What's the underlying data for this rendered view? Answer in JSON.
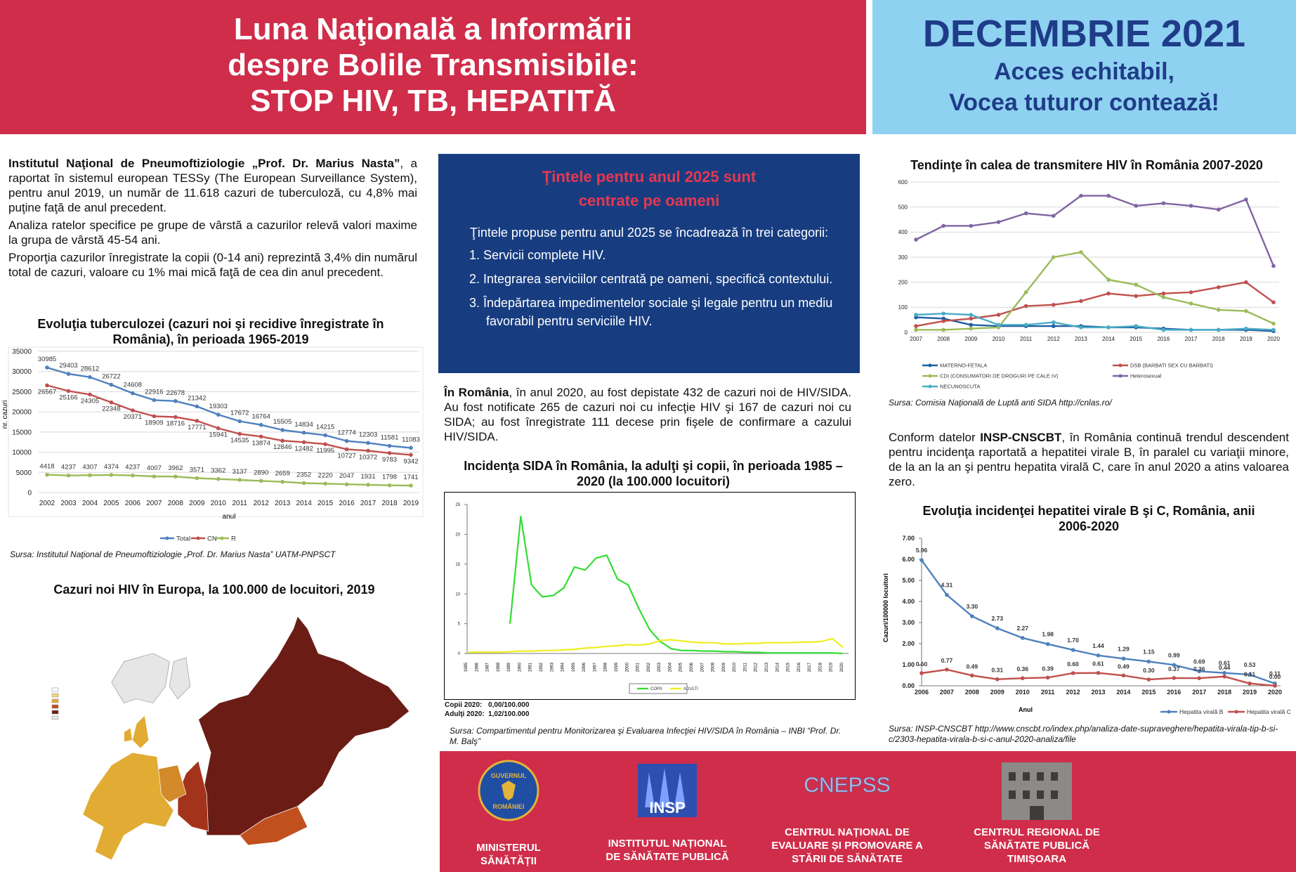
{
  "header": {
    "title_lines": [
      "Luna Naţională a Informării",
      "despre Bolile Transmisibile:",
      "STOP HIV, TB, HEPATITĂ"
    ],
    "month": "DECEMBRIE 2021",
    "slogan": [
      "Acces echitabil,",
      "Vocea tuturor contează!"
    ]
  },
  "left": {
    "intro_bold": "Institutul Naţional de Pneumoftiziologie „Prof. Dr. Marius Nasta”",
    "intro_text": ", a raportat în sistemul european TESSy (The European Surveillance System), pentru anul 2019, un număr de 11.618 cazuri de tuberculoză, cu 4,8% mai puţine faţă de anul precedent.",
    "p2": "Analiza ratelor specifice pe grupe de vârstă a cazurilor relevă valori maxime la grupa de vârstă 45-54 ani.",
    "p3": "Proporţia cazurilor înregistrate la copii (0-14 ani) reprezintă 3,4% din numărul total de cazuri, valoare cu 1% mai mică faţă de cea din anul precedent."
  },
  "map": {
    "title": "Cazuri noi HIV în Europa, la 100.000 de locuitori, 2019"
  },
  "targets": {
    "title_lines": [
      "Ţintele pentru anul 2025 sunt",
      "centrate pe oameni"
    ],
    "intro": "Ţintele propuse pentru anul 2025 se încadrează în trei categorii:",
    "items": [
      "1. Servicii complete HIV.",
      "2. Integrarea serviciilor centrată pe oameni, specifică contextului.",
      "3. Îndepărtarea impedimentelor sociale şi legale pentru un mediu favorabil pentru serviciile HIV."
    ]
  },
  "romania": {
    "bold": "În România",
    "text": ", în anul 2020, au fost depistate 432 de cazuri noi de HIV/SIDA. Au fost notificate 265 de cazuri noi cu infecţie HIV şi 167 de cazuri noi cu SIDA; au fost înregistrate 111 decese prin fişele de confirmare a cazului HIV/SIDA."
  },
  "hepatitis_text": {
    "lead": "Conform datelor ",
    "bold": "INSP-CNSCBT",
    "text": ", în România continuă trendul descendent pentru incidenţa raportată a hepatitei virale B, în paralel cu variaţii minore, de la an la an şi pentru hepatita virală C, care în anul 2020 a atins valoarea zero."
  },
  "footer": {
    "logos": [
      {
        "mark": [
          "GUVERNUL",
          "ROMÂNIEI"
        ],
        "label": [
          "MINISTERUL",
          "SĂNĂTĂȚII"
        ]
      },
      {
        "mark": [
          "INSP"
        ],
        "label": [
          "INSTITUTUL NAȚIONAL",
          "DE SĂNĂTATE PUBLICĂ"
        ]
      },
      {
        "mark": [
          "CNEPSS"
        ],
        "label": [
          "CENTRUL NAȚIONAL DE",
          "EVALUARE ȘI PROMOVARE A",
          "STĂRII DE SĂNĂTATE"
        ]
      },
      {
        "label": [
          "CENTRUL REGIONAL DE",
          "SĂNĂTATE PUBLICĂ",
          "TIMIȘOARA"
        ]
      }
    ]
  },
  "chart_data": [
    {
      "type": "line",
      "title": "Evoluţia tuberculozei (cazuri noi şi recidive înregistrate în România), în perioada 1965-2019",
      "ylabel": "nr. cazuri",
      "xlabel": "anul",
      "source": "Sursa: Institutul Naţional de Pneumoftiziologie „Prof. Dr. Marius Nasta” UATM-PNPSCT",
      "categories": [
        "2002",
        "2003",
        "2004",
        "2005",
        "2006",
        "2007",
        "2008",
        "2009",
        "2010",
        "2011",
        "2012",
        "2013",
        "2014",
        "2015",
        "2016",
        "2017",
        "2018",
        "2019"
      ],
      "series": [
        {
          "name": "Total",
          "color": "#4f81bd",
          "values": [
            30985,
            29403,
            28612,
            26722,
            24608,
            22916,
            22678,
            21342,
            19303,
            17672,
            16764,
            15505,
            14834,
            14215,
            12774,
            12303,
            11581,
            11083
          ]
        },
        {
          "name": "CN",
          "color": "#c0504d",
          "values": [
            26567,
            25166,
            24305,
            22348,
            20371,
            18909,
            18716,
            17771,
            15941,
            14535,
            13874,
            12846,
            12482,
            11995,
            10727,
            10372,
            9783,
            9342
          ]
        },
        {
          "name": "R",
          "color": "#9bbb59",
          "values": [
            4418,
            4237,
            4307,
            4374,
            4237,
            4007,
            3962,
            3571,
            3362,
            3137,
            2890,
            2659,
            2352,
            2220,
            2047,
            1931,
            1798,
            1741
          ]
        }
      ],
      "ylim": [
        0,
        35000
      ],
      "yticks": [
        0,
        5000,
        10000,
        15000,
        20000,
        25000,
        30000,
        35000
      ],
      "grid": true,
      "data_labels": true,
      "markers": true,
      "legend": "bottom"
    },
    {
      "type": "line",
      "title": "Tendinţe în calea de transmitere HIV în România 2007-2020",
      "source": "Sursa: Comisia Naţională de Luptă anti SIDA http://cnlas.ro/",
      "categories": [
        "2007",
        "2008",
        "2009",
        "2010",
        "2011",
        "2012",
        "2013",
        "2014",
        "2015",
        "2016",
        "2017",
        "2018",
        "2019",
        "2020"
      ],
      "series": [
        {
          "name": "MATERNO-FETALA",
          "color": "#1f5fa0",
          "values": [
            60,
            55,
            30,
            25,
            25,
            25,
            25,
            20,
            20,
            15,
            10,
            10,
            10,
            5
          ]
        },
        {
          "name": "DSB (BARBATI SEX CU BARBATI)",
          "color": "#c0504d",
          "values": [
            25,
            45,
            55,
            70,
            105,
            110,
            125,
            155,
            145,
            155,
            160,
            180,
            200,
            120
          ]
        },
        {
          "name": "CDI (CONSUMATORI DE DROGURI PE CALE IV)",
          "color": "#9bbb59",
          "values": [
            10,
            10,
            15,
            20,
            160,
            300,
            320,
            210,
            190,
            140,
            115,
            90,
            85,
            35
          ]
        },
        {
          "name": "Heterosexual",
          "color": "#8064a2",
          "values": [
            370,
            425,
            425,
            440,
            475,
            465,
            545,
            545,
            505,
            515,
            505,
            490,
            530,
            265
          ]
        },
        {
          "name": "NECUNOSCUTA",
          "color": "#4bacc6",
          "values": [
            70,
            75,
            70,
            30,
            30,
            40,
            20,
            20,
            25,
            10,
            10,
            10,
            15,
            10
          ]
        }
      ],
      "ylim": [
        0,
        600
      ],
      "yticks": [
        0,
        100,
        200,
        300,
        400,
        500,
        600
      ],
      "grid": true,
      "markers": true,
      "legend": "bottom"
    },
    {
      "type": "line",
      "title": "Incidenţa SIDA în România, la adulţi şi copii, în perioada 1985 – 2020 (la 100.000 locuitori)",
      "notes": [
        "Copii 2020:",
        "0,00/100.000",
        "Adulţi 2020:",
        "1,02/100.000"
      ],
      "source": "Sursa: Compartimentul pentru Monitorizarea şi Evaluarea Infecţiei HIV/SIDA în România – INBI “Prof. Dr. M. Balş”",
      "categories": [
        "1985",
        "1986",
        "1987",
        "1988",
        "1989",
        "1990",
        "1991",
        "1992",
        "1993",
        "1994",
        "1995",
        "1996",
        "1997",
        "1998",
        "1999",
        "2000",
        "2001",
        "2002",
        "2003",
        "2004",
        "2005",
        "2006",
        "2007",
        "2008",
        "2009",
        "2010",
        "2011",
        "2012",
        "2013",
        "2014",
        "2015",
        "2016",
        "2017",
        "2018",
        "2019",
        "2020"
      ],
      "series": [
        {
          "name": "COPII",
          "color": "#33dd33",
          "values": [
            null,
            null,
            null,
            null,
            5,
            23,
            11.5,
            9.5,
            9.7,
            11,
            14.5,
            14,
            16,
            16.5,
            12.5,
            11.5,
            7.5,
            4,
            2,
            0.8,
            0.5,
            0.5,
            0.4,
            0.4,
            0.3,
            0.3,
            0.2,
            0.2,
            0.1,
            0.1,
            0.1,
            0.1,
            0.1,
            0.1,
            0.1,
            0
          ]
        },
        {
          "name": "ADULTI",
          "color": "#eeee22",
          "values": [
            0.2,
            0.2,
            0.2,
            0.2,
            0.3,
            0.4,
            0.4,
            0.5,
            0.5,
            0.6,
            0.7,
            0.9,
            1.0,
            1.2,
            1.3,
            1.5,
            1.4,
            1.6,
            2.2,
            2.3,
            2.1,
            1.9,
            1.8,
            1.8,
            1.6,
            1.6,
            1.7,
            1.7,
            1.8,
            1.8,
            1.8,
            1.9,
            1.9,
            2.0,
            2.5,
            1.02
          ]
        }
      ],
      "ylim": [
        0,
        25
      ],
      "yticks": [
        0,
        5,
        10,
        15,
        20,
        25
      ],
      "grid": false,
      "legend": "bottom"
    },
    {
      "type": "line",
      "title": "Evoluţia incidenţei hepatitei virale B şi C, România, anii 2006-2020",
      "ylabel": "Cazuri/100000 locuitori",
      "xlabel": "Anul",
      "source": "Sursa: INSP-CNSCBT http://www.cnscbt.ro/index.php/analiza-date-supraveghere/hepatita-virala-tip-b-si-c/2303-hepatita-virala-b-si-c-anul-2020-analiza/file",
      "categories": [
        "2006",
        "2007",
        "2008",
        "2009",
        "2010",
        "2011",
        "2012",
        "2013",
        "2014",
        "2015",
        "2016",
        "2017",
        "2018",
        "2019",
        "2020"
      ],
      "series": [
        {
          "name": "Hepatita virală  B",
          "color": "#4f81bd",
          "values": [
            5.96,
            4.31,
            3.3,
            2.73,
            2.27,
            1.98,
            1.7,
            1.44,
            1.29,
            1.15,
            0.99,
            0.69,
            0.61,
            0.53,
            0.11
          ],
          "value_labels": [
            "5.96",
            "4.31",
            "3.30",
            "2.73",
            "2.27",
            "1.98",
            "1.70",
            "1.44",
            "1.29",
            "1.15",
            "0.99",
            "0.69",
            "0.61",
            "0.53",
            "0.11"
          ]
        },
        {
          "name": "Hepatita virală C",
          "color": "#c0504d",
          "values": [
            0.6,
            0.77,
            0.49,
            0.31,
            0.36,
            0.39,
            0.6,
            0.61,
            0.49,
            0.3,
            0.37,
            0.36,
            0.44,
            0.11,
            0
          ],
          "value_labels": [
            "0.60",
            "0.77",
            "0.49",
            "0.31",
            "0.36",
            "0.39",
            "0.60",
            "0.61",
            "0.49",
            "0.30",
            "0.37",
            "0.36",
            "0.44",
            "0.11",
            "0.00"
          ]
        }
      ],
      "ylim": [
        0,
        7
      ],
      "yticks": [
        {
          "value": 0,
          "label": "0.00"
        },
        {
          "value": 1,
          "label": "1.00"
        },
        {
          "value": 2,
          "label": "2.00"
        },
        {
          "value": 3,
          "label": "3.00"
        },
        {
          "value": 4,
          "label": "4.00"
        },
        {
          "value": 5,
          "label": "5.00"
        },
        {
          "value": 6,
          "label": "6.00"
        },
        {
          "value": 7,
          "label": "7.00"
        }
      ],
      "grid": false,
      "data_labels": true,
      "markers": true,
      "legend": "bottom"
    }
  ]
}
